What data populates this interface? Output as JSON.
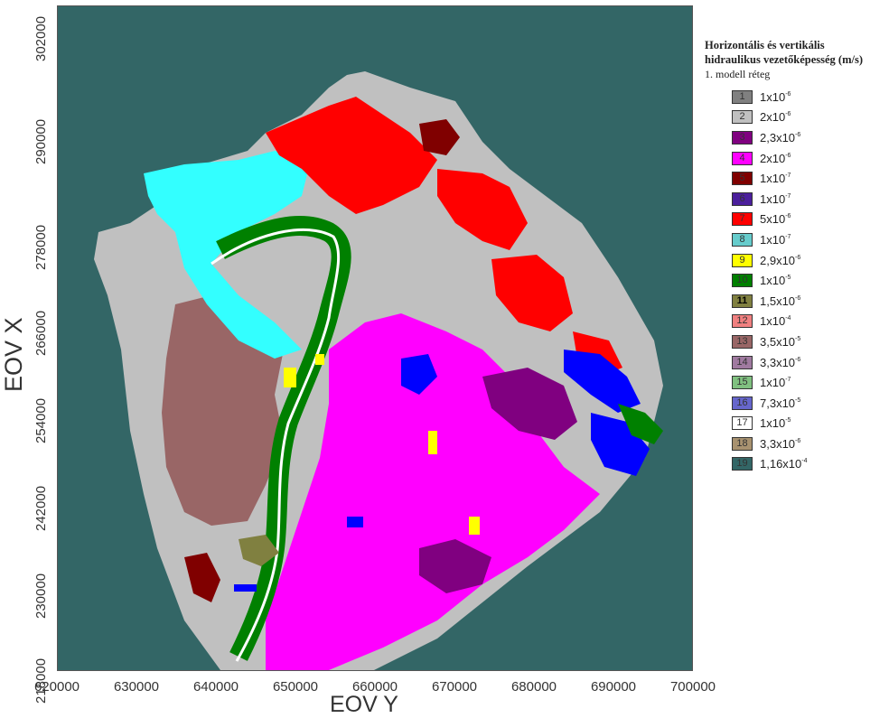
{
  "map": {
    "x_axis_title": "EOV Y",
    "y_axis_title": "EOV X",
    "x_ticks": [
      "620000",
      "630000",
      "640000",
      "650000",
      "660000",
      "670000",
      "680000",
      "690000",
      "700000"
    ],
    "y_ticks": [
      "302000",
      "290000",
      "278000",
      "266000",
      "254000",
      "242000",
      "230000",
      "218000"
    ],
    "background_color": "#336666"
  },
  "legend": {
    "title": "Horizontális és vertikális hidraulikus vezetőképesség (m/s)",
    "subtitle": "1. modell réteg",
    "items": [
      {
        "num": "1",
        "mantissa": "1x10",
        "exp": "-6",
        "color": "#808080"
      },
      {
        "num": "2",
        "mantissa": "2x10",
        "exp": "-6",
        "color": "#c0c0c0"
      },
      {
        "num": "3",
        "mantissa": "2,3x10",
        "exp": "-6",
        "color": "#800080"
      },
      {
        "num": "4",
        "mantissa": "2x10",
        "exp": "-6",
        "color": "#ff00ff"
      },
      {
        "num": "5",
        "mantissa": "1x10",
        "exp": "-7",
        "color": "#800000"
      },
      {
        "num": "6",
        "mantissa": "1x10",
        "exp": "-7",
        "color": "#4b1f9c"
      },
      {
        "num": "7",
        "mantissa": "5x10",
        "exp": "-6",
        "color": "#ff0000"
      },
      {
        "num": "8",
        "mantissa": "1x10",
        "exp": "-7",
        "color": "#66cccc"
      },
      {
        "num": "9",
        "mantissa": "2,9x10",
        "exp": "-6",
        "color": "#ffff00"
      },
      {
        "num": "10",
        "mantissa": "1x10",
        "exp": "-5",
        "color": "#008000"
      },
      {
        "num": "11",
        "mantissa": "1,5x10",
        "exp": "-6",
        "color": "#808040"
      },
      {
        "num": "12",
        "mantissa": "1x10",
        "exp": "-4",
        "color": "#f08080"
      },
      {
        "num": "13",
        "mantissa": "3,5x10",
        "exp": "-5",
        "color": "#996666"
      },
      {
        "num": "14",
        "mantissa": "3,3x10",
        "exp": "-6",
        "color": "#a07aa0"
      },
      {
        "num": "15",
        "mantissa": "1x10",
        "exp": "-7",
        "color": "#80c080"
      },
      {
        "num": "16",
        "mantissa": "7,3x10",
        "exp": "-5",
        "color": "#6666cc"
      },
      {
        "num": "17",
        "mantissa": "1x10",
        "exp": "-5",
        "color": "#ffffff"
      },
      {
        "num": "18",
        "mantissa": "3,3x10",
        "exp": "-6",
        "color": "#a89270"
      },
      {
        "num": "19",
        "mantissa": "1,16x10",
        "exp": "-4",
        "color": "#336666"
      }
    ]
  }
}
